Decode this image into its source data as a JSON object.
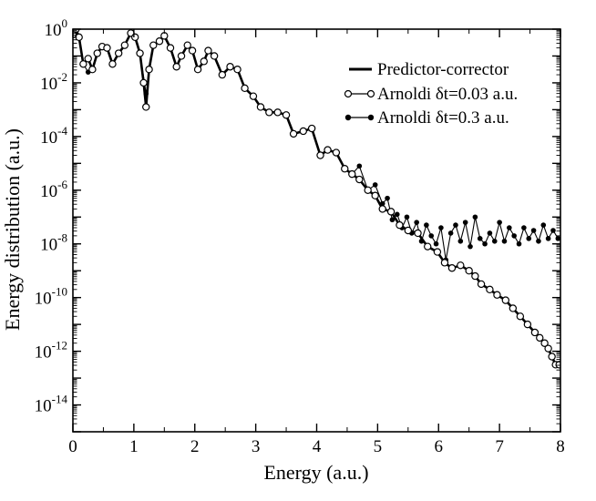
{
  "chart_data": {
    "type": "line",
    "title": "",
    "xlabel": "Energy (a.u.)",
    "ylabel": "Energy distribution (a.u.)",
    "xlim": [
      0,
      8
    ],
    "ylim_log10": [
      -15,
      0
    ],
    "yscale": "log",
    "grid": false,
    "legend_position": "top-right",
    "x_ticks": [
      {
        "value": 0,
        "label": "0"
      },
      {
        "value": 1,
        "label": "1"
      },
      {
        "value": 2,
        "label": "2"
      },
      {
        "value": 3,
        "label": "3"
      },
      {
        "value": 4,
        "label": "4"
      },
      {
        "value": 5,
        "label": "5"
      },
      {
        "value": 6,
        "label": "6"
      },
      {
        "value": 7,
        "label": "7"
      },
      {
        "value": 8,
        "label": "8"
      }
    ],
    "y_ticks": [
      {
        "exp": 0,
        "base": "10",
        "sup": "0"
      },
      {
        "exp": -2,
        "base": "10",
        "sup": "-2"
      },
      {
        "exp": -4,
        "base": "10",
        "sup": "-4"
      },
      {
        "exp": -6,
        "base": "10",
        "sup": "-6"
      },
      {
        "exp": -8,
        "base": "10",
        "sup": "-8"
      },
      {
        "exp": -10,
        "base": "10",
        "sup": "-10"
      },
      {
        "exp": -12,
        "base": "10",
        "sup": "-12"
      },
      {
        "exp": -14,
        "base": "10",
        "sup": "-14"
      }
    ],
    "series": [
      {
        "name": "Predictor-corrector",
        "style": "line",
        "x": [
          0.0,
          0.05,
          0.1,
          0.17,
          0.25,
          0.32,
          0.4,
          0.48,
          0.56,
          0.65,
          0.75,
          0.85,
          0.95,
          1.02,
          1.1,
          1.16,
          1.2,
          1.25,
          1.32,
          1.42,
          1.5,
          1.6,
          1.7,
          1.78,
          1.88,
          1.96,
          2.05,
          2.15,
          2.22,
          2.32,
          2.45,
          2.58,
          2.7,
          2.82,
          2.96,
          3.08,
          3.22,
          3.36,
          3.5,
          3.62,
          3.78,
          3.92,
          4.06,
          4.18,
          4.32,
          4.46,
          4.58,
          4.7,
          4.84,
          4.96,
          5.08,
          5.22,
          5.36,
          5.5,
          5.66,
          5.82,
          5.98,
          6.1,
          6.22,
          6.36,
          6.5,
          6.6,
          6.7,
          6.84,
          6.96,
          7.1,
          7.22,
          7.34,
          7.46,
          7.58,
          7.66,
          7.74,
          7.8,
          7.86,
          7.92,
          7.98
        ],
        "log10": [
          -0.2,
          0.0,
          -0.3,
          -1.3,
          -1.1,
          -1.5,
          -0.9,
          -0.65,
          -0.7,
          -1.3,
          -0.9,
          -0.6,
          -0.15,
          -0.3,
          -0.9,
          -2.0,
          -2.9,
          -1.5,
          -0.6,
          -0.45,
          -0.25,
          -0.7,
          -1.4,
          -1.0,
          -0.6,
          -0.8,
          -1.5,
          -1.2,
          -0.8,
          -1.0,
          -1.7,
          -1.4,
          -1.5,
          -2.2,
          -2.5,
          -2.9,
          -3.1,
          -3.1,
          -3.2,
          -3.9,
          -3.8,
          -3.7,
          -4.7,
          -4.5,
          -4.6,
          -5.2,
          -5.4,
          -5.6,
          -6.0,
          -6.2,
          -6.7,
          -6.8,
          -7.3,
          -7.5,
          -7.6,
          -8.1,
          -8.3,
          -8.7,
          -8.9,
          -8.8,
          -9.0,
          -9.2,
          -9.5,
          -9.7,
          -9.9,
          -10.1,
          -10.4,
          -10.7,
          -11.0,
          -11.3,
          -11.5,
          -11.7,
          -11.9,
          -12.2,
          -12.5,
          -12.5
        ]
      },
      {
        "name": "Arnoldi δt=0.03 a.u.",
        "style": "line-open-circles",
        "x": [
          0.0,
          0.05,
          0.1,
          0.17,
          0.25,
          0.32,
          0.4,
          0.48,
          0.56,
          0.65,
          0.75,
          0.85,
          0.95,
          1.02,
          1.1,
          1.16,
          1.2,
          1.25,
          1.32,
          1.42,
          1.5,
          1.6,
          1.7,
          1.78,
          1.88,
          1.96,
          2.05,
          2.15,
          2.22,
          2.32,
          2.45,
          2.58,
          2.7,
          2.82,
          2.96,
          3.08,
          3.22,
          3.36,
          3.5,
          3.62,
          3.78,
          3.92,
          4.06,
          4.18,
          4.32,
          4.46,
          4.58,
          4.7,
          4.84,
          4.96,
          5.08,
          5.22,
          5.36,
          5.5,
          5.66,
          5.82,
          5.98,
          6.1,
          6.22,
          6.36,
          6.5,
          6.6,
          6.7,
          6.84,
          6.96,
          7.1,
          7.22,
          7.34,
          7.46,
          7.58,
          7.66,
          7.74,
          7.8,
          7.86,
          7.92,
          7.98
        ],
        "log10": [
          -0.2,
          0.0,
          -0.3,
          -1.3,
          -1.1,
          -1.5,
          -0.9,
          -0.65,
          -0.7,
          -1.3,
          -0.9,
          -0.6,
          -0.15,
          -0.3,
          -0.9,
          -2.0,
          -2.9,
          -1.5,
          -0.6,
          -0.45,
          -0.25,
          -0.7,
          -1.4,
          -1.0,
          -0.6,
          -0.8,
          -1.5,
          -1.2,
          -0.8,
          -1.0,
          -1.7,
          -1.4,
          -1.5,
          -2.2,
          -2.5,
          -2.9,
          -3.1,
          -3.1,
          -3.2,
          -3.9,
          -3.8,
          -3.7,
          -4.7,
          -4.5,
          -4.6,
          -5.2,
          -5.4,
          -5.6,
          -6.0,
          -6.2,
          -6.7,
          -6.8,
          -7.3,
          -7.5,
          -7.6,
          -8.1,
          -8.3,
          -8.7,
          -8.9,
          -8.8,
          -9.0,
          -9.2,
          -9.5,
          -9.7,
          -9.9,
          -10.1,
          -10.4,
          -10.7,
          -11.0,
          -11.3,
          -11.5,
          -11.7,
          -11.9,
          -12.2,
          -12.5,
          -12.5
        ]
      },
      {
        "name": "Arnoldi δt=0.3 a.u.",
        "style": "line-filled-circles",
        "x": [
          0.0,
          0.05,
          0.1,
          0.17,
          0.25,
          0.32,
          0.4,
          0.48,
          0.56,
          0.65,
          0.75,
          0.85,
          0.95,
          1.02,
          1.1,
          1.2,
          1.32,
          1.42,
          1.5,
          1.6,
          1.7,
          1.78,
          1.88,
          1.96,
          2.05,
          2.15,
          2.22,
          2.32,
          2.45,
          2.58,
          2.7,
          2.82,
          2.96,
          3.08,
          3.22,
          3.36,
          3.5,
          3.62,
          3.78,
          3.92,
          4.06,
          4.18,
          4.32,
          4.46,
          4.58,
          4.7,
          4.84,
          4.96,
          5.08,
          5.16,
          5.24,
          5.32,
          5.4,
          5.48,
          5.56,
          5.64,
          5.72,
          5.8,
          5.88,
          5.96,
          6.04,
          6.12,
          6.2,
          6.28,
          6.36,
          6.44,
          6.52,
          6.6,
          6.68,
          6.76,
          6.84,
          6.92,
          7.0,
          7.08,
          7.16,
          7.24,
          7.32,
          7.4,
          7.48,
          7.56,
          7.64,
          7.72,
          7.8,
          7.88,
          7.96
        ],
        "log10": [
          -0.2,
          0.0,
          -0.3,
          -1.3,
          -1.6,
          -1.5,
          -0.9,
          -0.65,
          -0.7,
          -1.3,
          -0.9,
          -0.6,
          -0.15,
          -0.3,
          -0.9,
          -2.4,
          -0.6,
          -0.45,
          -0.25,
          -0.7,
          -1.4,
          -1.0,
          -0.6,
          -0.8,
          -1.5,
          -1.2,
          -0.8,
          -1.0,
          -1.7,
          -1.4,
          -1.5,
          -2.2,
          -2.5,
          -2.9,
          -3.1,
          -3.1,
          -3.2,
          -3.9,
          -3.8,
          -3.7,
          -4.7,
          -4.5,
          -4.6,
          -5.2,
          -5.4,
          -5.1,
          -6.0,
          -5.8,
          -6.5,
          -6.3,
          -7.1,
          -6.9,
          -7.4,
          -7.0,
          -7.6,
          -7.2,
          -7.9,
          -7.3,
          -7.7,
          -8.0,
          -7.4,
          -8.6,
          -7.6,
          -7.3,
          -7.9,
          -7.2,
          -8.1,
          -7.0,
          -7.8,
          -8.0,
          -7.6,
          -7.9,
          -7.2,
          -7.9,
          -7.4,
          -7.7,
          -8.0,
          -7.4,
          -7.8,
          -7.5,
          -7.9,
          -7.3,
          -7.8,
          -7.5,
          -7.8
        ]
      }
    ]
  }
}
